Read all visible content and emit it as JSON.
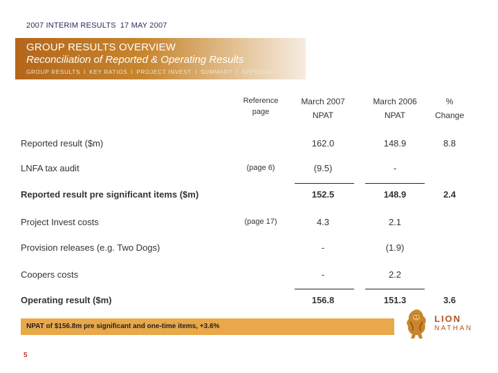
{
  "header": {
    "event": "2007 INTERIM RESULTS",
    "date": "17 MAY 2007"
  },
  "banner": {
    "title": "GROUP RESULTS OVERVIEW",
    "subtitle": "Reconciliation of Reported & Operating Results",
    "nav": [
      "GROUP RESULTS",
      "KEY RATIOS",
      "PROJECT INVEST",
      "SUMMARY",
      "APPENDIX"
    ],
    "nav_separator": "I"
  },
  "table": {
    "columns": {
      "ref_line1": "Reference",
      "ref_line2": "page",
      "m07_line1": "March 2007",
      "m07_line2": "NPAT",
      "m06_line1": "March 2006",
      "m06_line2": "NPAT",
      "chg_line1": "%",
      "chg_line2": "Change"
    },
    "rows": [
      {
        "label": "Reported result ($m)",
        "ref": "",
        "m2007": "162.0",
        "m2006": "148.9",
        "change": "8.8"
      },
      {
        "label": "LNFA tax audit",
        "ref": "(page 6)",
        "m2007": "(9.5)",
        "m2006": "-",
        "change": ""
      },
      {
        "label": "Reported result pre significant items ($m)",
        "ref": "",
        "m2007": "152.5",
        "m2006": "148.9",
        "change": "2.4"
      },
      {
        "label": "Project Invest costs",
        "ref": "(page 17)",
        "m2007": "4.3",
        "m2006": "2.1",
        "change": ""
      },
      {
        "label": "Provision releases (e.g. Two Dogs)",
        "ref": "",
        "m2007": "-",
        "m2006": "(1.9)",
        "change": ""
      },
      {
        "label": "Coopers costs",
        "ref": "",
        "m2007": "-",
        "m2006": "2.2",
        "change": ""
      },
      {
        "label": "Operating result ($m)",
        "ref": "",
        "m2007": "156.8",
        "m2006": "151.3",
        "change": "3.6"
      }
    ]
  },
  "callout": "NPAT of $156.8m pre significant and one-time items, +3.6%",
  "page_number": "5",
  "logo": {
    "line1": "LION",
    "line2": "NATHAN"
  },
  "colors": {
    "banner": "#c8862f",
    "callout": "#e9a84a",
    "page_number": "#c7302c",
    "logo": "#b3541b"
  }
}
